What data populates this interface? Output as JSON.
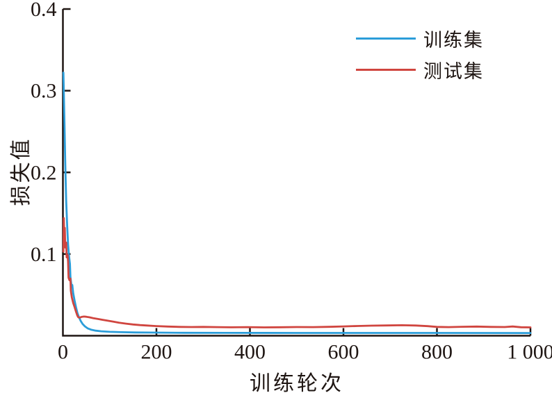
{
  "chart_data": {
    "type": "line",
    "title": "",
    "xlabel": "训练轮次",
    "ylabel": "损失值",
    "xlim": [
      0,
      1000
    ],
    "ylim": [
      0,
      0.4
    ],
    "xticks": [
      0,
      200,
      400,
      600,
      800,
      1000
    ],
    "xtick_labels": [
      "0",
      "200",
      "400",
      "600",
      "800",
      "1 000"
    ],
    "yticks": [
      0.1,
      0.2,
      0.3,
      0.4
    ],
    "ytick_labels": [
      "0.1",
      "0.2",
      "0.3",
      "0.4"
    ],
    "grid": false,
    "legend_position": "top-right-inside",
    "axis_color": "#1e1512",
    "series": [
      {
        "name": "训练集",
        "color": "#2b9dd9",
        "points": [
          [
            1,
            0.322
          ],
          [
            3,
            0.27
          ],
          [
            5,
            0.21
          ],
          [
            7,
            0.165
          ],
          [
            9,
            0.135
          ],
          [
            11,
            0.112
          ],
          [
            13,
            0.098
          ],
          [
            15,
            0.088
          ],
          [
            16,
            0.072
          ],
          [
            18,
            0.063
          ],
          [
            20,
            0.062
          ],
          [
            22,
            0.052
          ],
          [
            25,
            0.043
          ],
          [
            28,
            0.035
          ],
          [
            31,
            0.028
          ],
          [
            34,
            0.023
          ],
          [
            38,
            0.018
          ],
          [
            42,
            0.0145
          ],
          [
            47,
            0.0115
          ],
          [
            53,
            0.009
          ],
          [
            60,
            0.0075
          ],
          [
            70,
            0.0062
          ],
          [
            82,
            0.0054
          ],
          [
            100,
            0.0048
          ],
          [
            125,
            0.0043
          ],
          [
            155,
            0.004
          ],
          [
            200,
            0.0038
          ],
          [
            260,
            0.0036
          ],
          [
            350,
            0.0035
          ],
          [
            500,
            0.0034
          ],
          [
            700,
            0.0034
          ],
          [
            1000,
            0.0033
          ]
        ]
      },
      {
        "name": "测试集",
        "color": "#d0453f",
        "points": [
          [
            1,
            0.103
          ],
          [
            2,
            0.144
          ],
          [
            3,
            0.122
          ],
          [
            4,
            0.132
          ],
          [
            5,
            0.108
          ],
          [
            7,
            0.114
          ],
          [
            8,
            0.096
          ],
          [
            10,
            0.099
          ],
          [
            11,
            0.091
          ],
          [
            12,
            0.071
          ],
          [
            14,
            0.068
          ],
          [
            16,
            0.07
          ],
          [
            17,
            0.055
          ],
          [
            19,
            0.047
          ],
          [
            22,
            0.04
          ],
          [
            25,
            0.035
          ],
          [
            28,
            0.0295
          ],
          [
            31,
            0.0245
          ],
          [
            33,
            0.0225
          ],
          [
            36,
            0.0222
          ],
          [
            40,
            0.023
          ],
          [
            45,
            0.0235
          ],
          [
            50,
            0.0232
          ],
          [
            57,
            0.0225
          ],
          [
            65,
            0.0215
          ],
          [
            75,
            0.0205
          ],
          [
            85,
            0.0195
          ],
          [
            95,
            0.0185
          ],
          [
            108,
            0.0172
          ],
          [
            120,
            0.016
          ],
          [
            135,
            0.0148
          ],
          [
            150,
            0.0138
          ],
          [
            165,
            0.013
          ],
          [
            180,
            0.0125
          ],
          [
            200,
            0.0118
          ],
          [
            225,
            0.0112
          ],
          [
            250,
            0.0108
          ],
          [
            275,
            0.0106
          ],
          [
            300,
            0.0108
          ],
          [
            330,
            0.0105
          ],
          [
            360,
            0.0103
          ],
          [
            395,
            0.0105
          ],
          [
            430,
            0.0102
          ],
          [
            465,
            0.0104
          ],
          [
            500,
            0.0106
          ],
          [
            535,
            0.0105
          ],
          [
            570,
            0.0109
          ],
          [
            600,
            0.0114
          ],
          [
            630,
            0.0119
          ],
          [
            660,
            0.0123
          ],
          [
            695,
            0.0126
          ],
          [
            725,
            0.0128
          ],
          [
            755,
            0.0125
          ],
          [
            780,
            0.0117
          ],
          [
            800,
            0.0108
          ],
          [
            825,
            0.0105
          ],
          [
            855,
            0.011
          ],
          [
            885,
            0.0112
          ],
          [
            915,
            0.0108
          ],
          [
            945,
            0.0106
          ],
          [
            962,
            0.0113
          ],
          [
            980,
            0.0104
          ],
          [
            1000,
            0.0102
          ]
        ]
      }
    ]
  }
}
